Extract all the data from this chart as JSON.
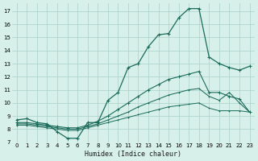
{
  "xlabel": "Humidex (Indice chaleur)",
  "bg_color": "#d8f0ea",
  "grid_color": "#a8cfc8",
  "line_color": "#1a6b5a",
  "xlim": [
    -0.5,
    23.5
  ],
  "ylim": [
    7,
    17.6
  ],
  "xticks": [
    0,
    1,
    2,
    3,
    4,
    5,
    6,
    7,
    8,
    9,
    10,
    11,
    12,
    13,
    14,
    15,
    16,
    17,
    18,
    19,
    20,
    21,
    22,
    23
  ],
  "yticks": [
    7,
    8,
    9,
    10,
    11,
    12,
    13,
    14,
    15,
    16,
    17
  ],
  "series1_x": [
    0,
    1,
    2,
    3,
    4,
    5,
    6,
    7,
    8,
    9,
    10,
    11,
    12,
    13,
    14,
    15,
    16,
    17,
    18,
    19,
    20,
    21,
    22,
    23
  ],
  "series1_y": [
    8.7,
    8.8,
    8.5,
    8.4,
    7.8,
    7.3,
    7.3,
    8.5,
    8.5,
    10.2,
    10.8,
    12.7,
    13.0,
    14.3,
    15.2,
    15.3,
    16.5,
    17.2,
    17.2,
    13.5,
    13.0,
    12.7,
    12.5,
    12.8
  ],
  "series2_x": [
    0,
    1,
    2,
    3,
    4,
    5,
    6,
    7,
    8,
    9,
    10,
    11,
    12,
    13,
    14,
    15,
    16,
    17,
    18,
    19,
    20,
    21,
    22,
    23
  ],
  "series2_y": [
    8.5,
    8.5,
    8.4,
    8.3,
    8.2,
    8.1,
    8.1,
    8.3,
    8.6,
    9.0,
    9.5,
    10.0,
    10.5,
    11.0,
    11.4,
    11.8,
    12.0,
    12.2,
    12.4,
    10.8,
    10.8,
    10.5,
    10.3,
    9.3
  ],
  "series3_x": [
    0,
    1,
    2,
    3,
    4,
    5,
    6,
    7,
    8,
    9,
    10,
    11,
    12,
    13,
    14,
    15,
    16,
    17,
    18,
    19,
    20,
    21,
    22,
    23
  ],
  "series3_y": [
    8.4,
    8.4,
    8.3,
    8.2,
    8.1,
    8.0,
    8.0,
    8.2,
    8.4,
    8.7,
    9.0,
    9.3,
    9.7,
    10.0,
    10.3,
    10.6,
    10.8,
    11.0,
    11.1,
    10.5,
    10.2,
    10.8,
    10.0,
    9.3
  ],
  "series4_x": [
    0,
    1,
    2,
    3,
    4,
    5,
    6,
    7,
    8,
    9,
    10,
    11,
    12,
    13,
    14,
    15,
    16,
    17,
    18,
    19,
    20,
    21,
    22,
    23
  ],
  "series4_y": [
    8.3,
    8.3,
    8.2,
    8.1,
    8.0,
    7.9,
    7.9,
    8.1,
    8.3,
    8.5,
    8.7,
    8.9,
    9.1,
    9.3,
    9.5,
    9.7,
    9.8,
    9.9,
    10.0,
    9.6,
    9.4,
    9.4,
    9.4,
    9.3
  ]
}
